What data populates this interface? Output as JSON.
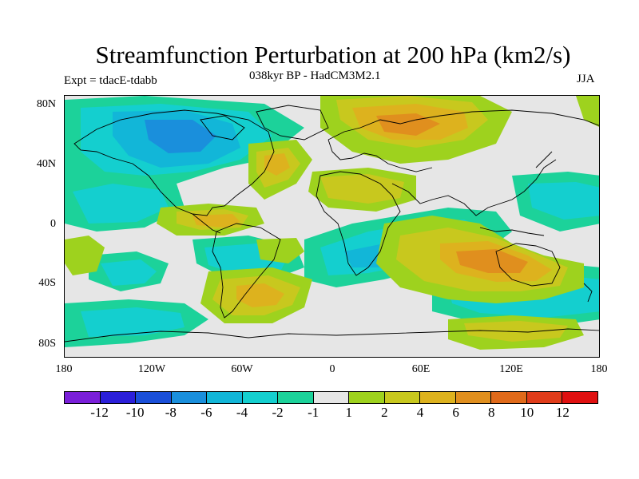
{
  "title": "Streamfunction Perturbation at 200 hPa (km2/s)",
  "subtitle": "038kyr BP - HadCM3M2.1",
  "experiment": "Expt = tdacE-tdabb",
  "season": "JJA",
  "lat_labels": [
    "80N",
    "40N",
    "0",
    "40S",
    "80S"
  ],
  "lon_labels": [
    "180",
    "120W",
    "60W",
    "0",
    "60E",
    "120E",
    "180"
  ],
  "colorbar": {
    "colors": [
      "#7a1fd9",
      "#2b1fd9",
      "#1a4fd9",
      "#1a8fdc",
      "#12b6d8",
      "#14cfcf",
      "#1cd29a",
      "#e6e6e6",
      "#9ed21e",
      "#c8c81e",
      "#ddb21e",
      "#e08f1e",
      "#e06a1a",
      "#e03c1a",
      "#e01010"
    ],
    "labels": [
      "-12",
      "-10",
      "-8",
      "-6",
      "-4",
      "-2",
      "-1",
      "1",
      "2",
      "4",
      "6",
      "8",
      "10",
      "12"
    ]
  },
  "field_colors": {
    "neg_weak": "#1cd29a",
    "neg_mid": "#14cfcf",
    "neg_strong": "#12b6d8",
    "neg_core": "#1a8fdc",
    "pos_weak": "#9ed21e",
    "pos_mid": "#c8c81e",
    "pos_strong": "#ddb21e",
    "pos_core": "#e08f1e"
  }
}
